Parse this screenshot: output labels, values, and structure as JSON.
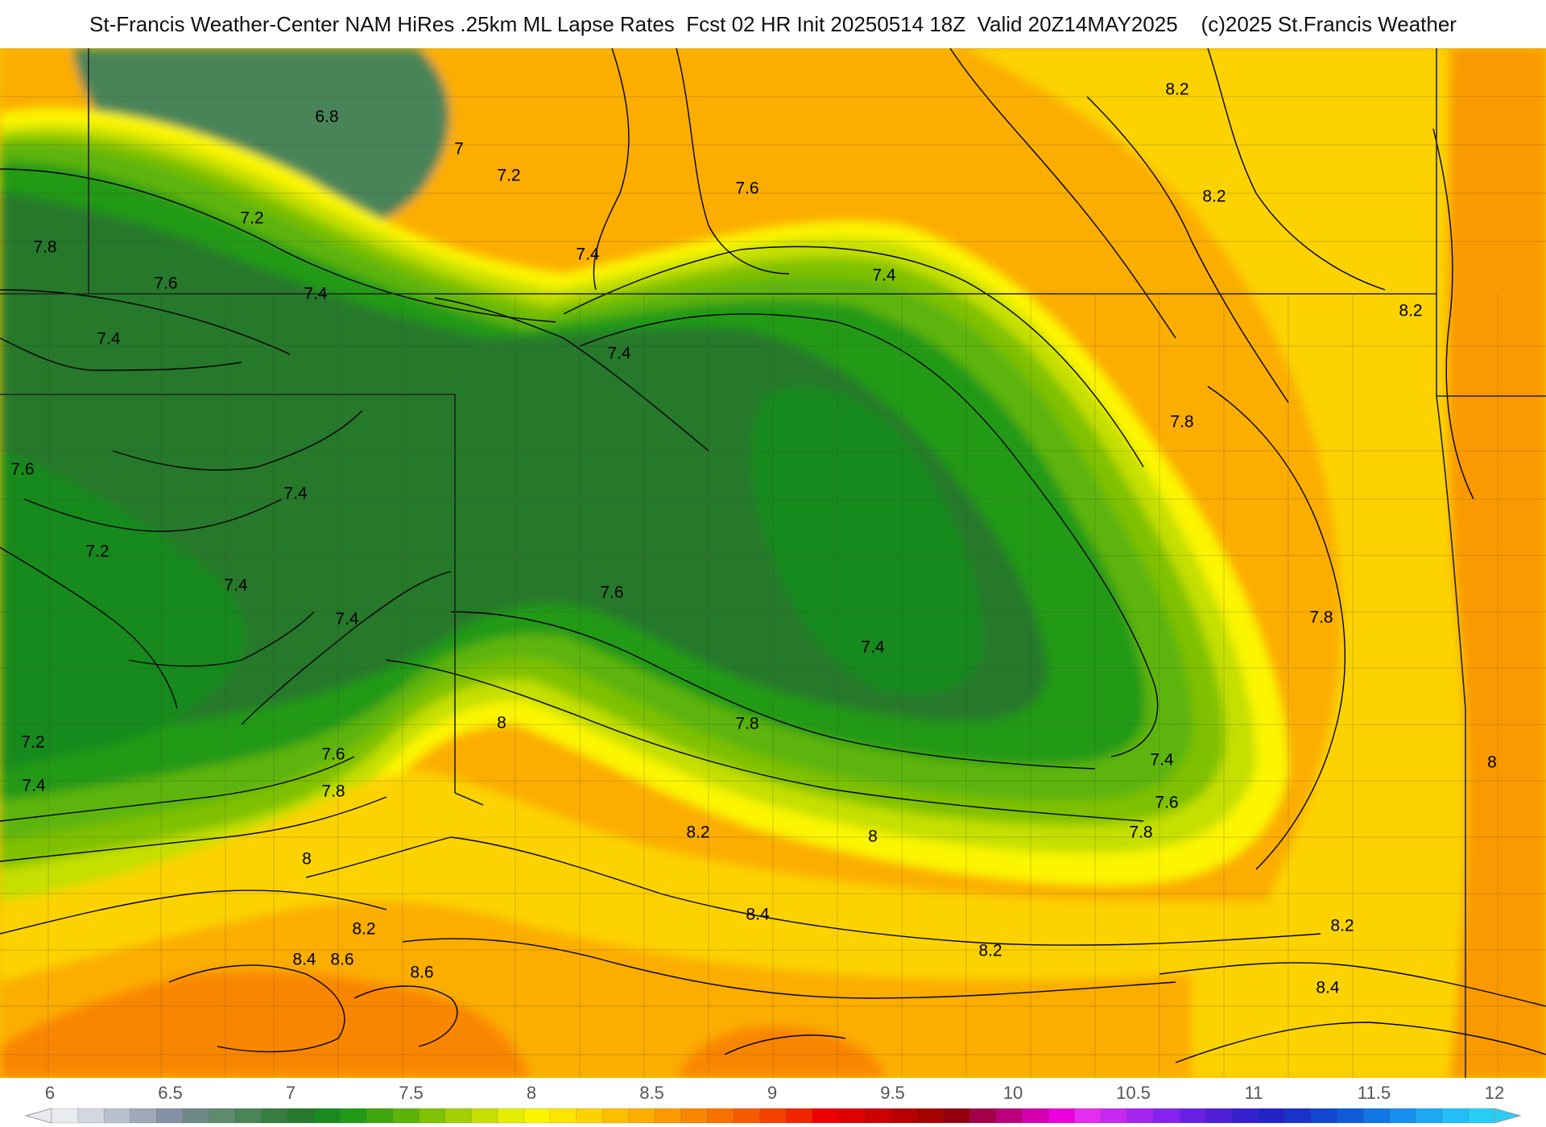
{
  "title": "St-Francis Weather-Center NAM HiRes .25km ML Lapse Rates  Fcst 02 HR Init 20250514 18Z  Valid 20Z14MAY2025    (c)2025 St.Francis Weather",
  "field": {
    "quantity": "ML Lapse Rates",
    "model": "NAM HiRes .25km",
    "forecast_hour": "02",
    "init": "20250514 18Z",
    "valid": "20Z14MAY2025"
  },
  "colors": {
    "background": "#ffffff",
    "contour_line": "#000000",
    "boundary_line": "#222222"
  },
  "colorbar": {
    "min": 6,
    "max": 12,
    "tick_labels": [
      "6",
      "6.5",
      "7",
      "7.5",
      "8",
      "8.5",
      "9",
      "9.5",
      "10",
      "10.5",
      "11",
      "11.5",
      "12"
    ],
    "colors": [
      "#e9ebef",
      "#d2d7e0",
      "#b8c0cd",
      "#9ea8b9",
      "#8591a6",
      "#6f8a86",
      "#5e8a6e",
      "#4a8458",
      "#357d40",
      "#25782c",
      "#198a1d",
      "#219a19",
      "#3ea60f",
      "#5db408",
      "#7fc104",
      "#a1cf02",
      "#c4df00",
      "#e4ee00",
      "#fbf500",
      "#fde500",
      "#fcd300",
      "#fcc000",
      "#fbad00",
      "#fa9a00",
      "#f98600",
      "#f87100",
      "#f65a00",
      "#f44100",
      "#f22500",
      "#ee0000",
      "#de0000",
      "#cc0000",
      "#b90000",
      "#a60000",
      "#95000e",
      "#a3004a",
      "#bb007d",
      "#d400ad",
      "#ec00dd",
      "#e52cf0",
      "#c728f0",
      "#a524ef",
      "#8522ef",
      "#6920e6",
      "#4f1ed9",
      "#3520cd",
      "#2123c6",
      "#1932c9",
      "#1145d2",
      "#0f5bdb",
      "#1175e4",
      "#168fed",
      "#1ca8f3",
      "#21bff6",
      "#28cdf5"
    ]
  },
  "regions": [
    {
      "name": "outer-orange",
      "value": 8.4
    },
    {
      "name": "southwest-red-core",
      "value": 8.8
    },
    {
      "name": "south-central-red-core",
      "value": 8.8
    },
    {
      "name": "east-orange-band",
      "value": 8.4
    },
    {
      "name": "central-green-trough",
      "value": 7.3
    },
    {
      "name": "northwest-dark-core",
      "value": 6.8
    }
  ],
  "contour_labels": [
    "8.2",
    "6.8",
    "7",
    "7.2",
    "7.6",
    "8.2",
    "7.2",
    "7.8",
    "7.4",
    "7.6",
    "7.4",
    "7.4",
    "7.4",
    "8.2",
    "7.4",
    "7.8",
    "7.6",
    "7.4",
    "7.2",
    "7.4",
    "7.6",
    "7.4",
    "7.8",
    "7.4",
    "8",
    "7.8",
    "7.2",
    "7.6",
    "7.4",
    "7.4",
    "8",
    "7.8",
    "7.6",
    "8.2",
    "8",
    "7.8",
    "8",
    "8.2",
    "8.4",
    "8.2",
    "8.4",
    "8.6",
    "8.6",
    "8.2",
    "8.4"
  ]
}
